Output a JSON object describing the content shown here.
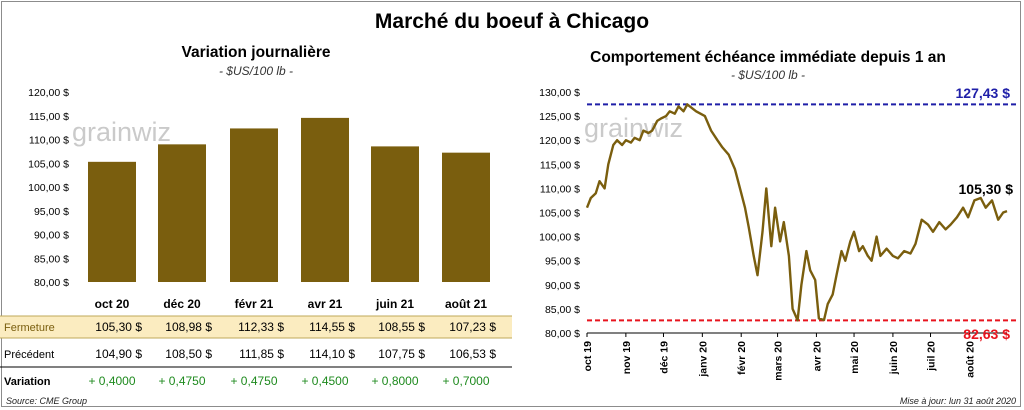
{
  "title": "Marché du boeuf à Chicago",
  "left": {
    "title": "Variation  journalière",
    "subtitle": "- $US/100 lb -",
    "watermark": "grainwiz",
    "row_labels": {
      "close": "Fermeture",
      "prev": "Précédent",
      "var": "Variation"
    },
    "closes": [
      "105,30  $",
      "108,98  $",
      "112,33  $",
      "114,55  $",
      "108,55  $",
      "107,23  $"
    ],
    "prevs": [
      "104,90  $",
      "108,50  $",
      "111,85  $",
      "114,10  $",
      "107,75  $",
      "106,53  $"
    ],
    "variations": [
      "+ 0,4000",
      "+ 0,4750",
      "+ 0,4750",
      "+ 0,4500",
      "+ 0,8000",
      "+ 0,7000"
    ]
  },
  "right": {
    "title": "Comportement  échéance immédiate depuis 1 an",
    "subtitle": "- $US/100 lb -",
    "watermark": "grainwiz",
    "max_label": "127,43 $",
    "min_label": "82,63 $",
    "last_label": "105,30 $"
  },
  "footer": {
    "source": "Source: CME Group",
    "update": "Mise à jour: lun 31 août 2020"
  },
  "colors": {
    "bar": "#7a5e0e",
    "line": "#7a5e0e",
    "max_line": "#1f1fa8",
    "min_line": "#e8141e",
    "close_row_bg": "#fbecc0",
    "variation_text": "#1e8a1e"
  },
  "chart_data": [
    {
      "type": "bar",
      "title": "Variation  journalière",
      "subtitle": "- $US/100 lb -",
      "categories": [
        "oct 20",
        "déc 20",
        "févr 21",
        "avr 21",
        "juin 21",
        "août 21"
      ],
      "values": [
        105.3,
        108.98,
        112.33,
        114.55,
        108.55,
        107.23
      ],
      "ylim": [
        80,
        120
      ],
      "yticks": [
        80,
        85,
        90,
        95,
        100,
        105,
        110,
        115,
        120
      ],
      "ytick_labels": [
        "80,00 $",
        "85,00 $",
        "90,00 $",
        "95,00 $",
        "100,00 $",
        "105,00 $",
        "110,00 $",
        "115,00 $",
        "120,00 $"
      ],
      "grid": false
    },
    {
      "type": "line",
      "title": "Comportement  échéance immédiate depuis 1 an",
      "subtitle": "- $US/100 lb -",
      "xlim": [
        "2019-10-01",
        "2020-08-31"
      ],
      "ylim": [
        80,
        130
      ],
      "yticks": [
        80,
        85,
        90,
        95,
        100,
        105,
        110,
        115,
        120,
        125,
        130
      ],
      "ytick_labels": [
        "80,00 $",
        "85,00 $",
        "90,00 $",
        "95,00 $",
        "100,00 $",
        "105,00 $",
        "110,00 $",
        "115,00 $",
        "120,00 $",
        "125,00 $",
        "130,00 $"
      ],
      "xticks": [
        "2019-10-01",
        "2019-11-01",
        "2019-12-01",
        "2020-01-01",
        "2020-02-01",
        "2020-03-01",
        "2020-04-01",
        "2020-05-01",
        "2020-06-01",
        "2020-07-01",
        "2020-08-01"
      ],
      "xtick_labels": [
        "oct 19",
        "nov 19",
        "déc 19",
        "janv 20",
        "févr 20",
        "mars 20",
        "avr 20",
        "mai 20",
        "juin 20",
        "juil 20",
        "août 20"
      ],
      "reference_lines": [
        {
          "y": 127.43,
          "label": "127,43 $",
          "color": "#1f1fa8"
        },
        {
          "y": 82.63,
          "label": "82,63 $",
          "color": "#e8141e"
        }
      ],
      "last_value": 105.3,
      "grid": false,
      "series": [
        {
          "x": [
            "2019-10-01",
            "2019-10-04",
            "2019-10-08",
            "2019-10-11",
            "2019-10-15",
            "2019-10-18",
            "2019-10-22",
            "2019-10-25",
            "2019-10-29",
            "2019-11-01",
            "2019-11-05",
            "2019-11-08",
            "2019-11-12",
            "2019-11-15",
            "2019-11-19",
            "2019-11-22",
            "2019-11-26",
            "2019-11-29",
            "2019-12-03",
            "2019-12-06",
            "2019-12-10",
            "2019-12-13",
            "2019-12-17",
            "2019-12-20",
            "2019-12-27",
            "2020-01-03",
            "2020-01-08",
            "2020-01-13",
            "2020-01-17",
            "2020-01-22",
            "2020-01-27",
            "2020-01-31",
            "2020-02-04",
            "2020-02-07",
            "2020-02-11",
            "2020-02-14",
            "2020-02-18",
            "2020-02-21",
            "2020-02-25",
            "2020-02-28",
            "2020-03-03",
            "2020-03-06",
            "2020-03-10",
            "2020-03-13",
            "2020-03-17",
            "2020-03-20",
            "2020-03-24",
            "2020-03-27",
            "2020-03-31",
            "2020-04-03",
            "2020-04-07",
            "2020-04-10",
            "2020-04-14",
            "2020-04-17",
            "2020-04-21",
            "2020-04-24",
            "2020-04-28",
            "2020-05-01",
            "2020-05-05",
            "2020-05-08",
            "2020-05-12",
            "2020-05-15",
            "2020-05-19",
            "2020-05-22",
            "2020-05-27",
            "2020-06-01",
            "2020-06-05",
            "2020-06-10",
            "2020-06-15",
            "2020-06-19",
            "2020-06-24",
            "2020-06-29",
            "2020-07-03",
            "2020-07-08",
            "2020-07-13",
            "2020-07-17",
            "2020-07-22",
            "2020-07-27",
            "2020-07-31",
            "2020-08-05",
            "2020-08-10",
            "2020-08-14",
            "2020-08-19",
            "2020-08-24",
            "2020-08-28",
            "2020-08-31"
          ],
          "values": [
            106.0,
            108.0,
            109.0,
            111.5,
            110.0,
            115.0,
            119.0,
            120.0,
            119.0,
            120.0,
            119.5,
            120.5,
            120.0,
            122.0,
            121.5,
            122.0,
            124.0,
            124.5,
            125.0,
            126.0,
            125.5,
            127.0,
            126.0,
            127.43,
            126.0,
            125.0,
            122.0,
            120.0,
            118.5,
            117.0,
            114.0,
            110.0,
            106.0,
            102.0,
            96.0,
            92.0,
            101.0,
            110.0,
            98.0,
            106.0,
            99.0,
            103.0,
            96.0,
            85.0,
            82.63,
            90.0,
            97.0,
            93.0,
            91.0,
            83.0,
            82.7,
            86.0,
            88.0,
            92.0,
            97.0,
            95.0,
            99.0,
            101.0,
            97.0,
            98.0,
            96.0,
            95.0,
            100.0,
            96.0,
            97.5,
            96.0,
            95.5,
            97.0,
            96.5,
            98.5,
            103.5,
            102.5,
            101.0,
            103.0,
            101.5,
            102.5,
            104.0,
            106.0,
            104.0,
            107.5,
            108.0,
            106.0,
            107.5,
            103.5,
            105.0,
            105.3
          ]
        }
      ]
    }
  ]
}
